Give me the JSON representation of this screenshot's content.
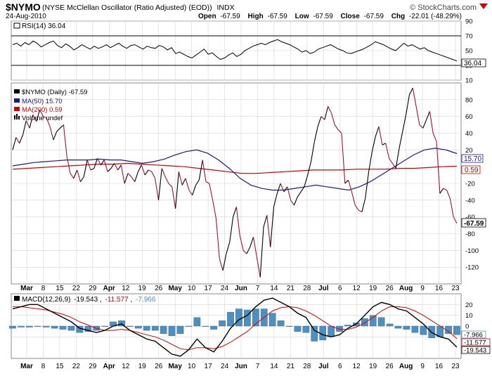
{
  "header": {
    "symbol": "$NYMO",
    "name": "(NYSE McClellan Oscillator (Ratio Adjusted) (EOD))",
    "exchange": "INDX",
    "date": "24-Aug-2010",
    "open_label": "Open",
    "open": "-67.59",
    "high_label": "High",
    "high": "-67.59",
    "low_label": "Low",
    "low": "-67.59",
    "close_label": "Close",
    "close": "-67.59",
    "chg_label": "Chg",
    "chg": "-22.01 (-48.29%)",
    "watermark": "© StockCharts.com"
  },
  "colors": {
    "price_up": "#000000",
    "price_down": "#aa1133",
    "ma50": "#1a1a8c",
    "ma200": "#cc0000",
    "macd": "#000000",
    "signal": "#dd0000",
    "histogram": "#4f8fc0",
    "grid": "#d4d4d4",
    "down_arrow": "#cc0000"
  },
  "x_labels": [
    "Mar",
    "8",
    "15",
    "22",
    "29",
    "Apr",
    "12",
    "19",
    "26",
    "May",
    "10",
    "17",
    "24",
    "Jun",
    "7",
    "14",
    "21",
    "28",
    "Jul",
    "6",
    "12",
    "19",
    "26",
    "Aug",
    "9",
    "16",
    "23"
  ],
  "x_labels_bold": [
    "Mar",
    "Apr",
    "May",
    "Jun",
    "Jul",
    "Aug"
  ],
  "chart_data": [
    {
      "type": "line",
      "panel": "rsi",
      "legend": "RSI(14) 36.04",
      "ylim": [
        10,
        90
      ],
      "y_ticks": [
        "10",
        "30",
        "50",
        "70",
        "90"
      ],
      "reference_lines": [
        30,
        70
      ],
      "last_value_label": "36.04",
      "values": [
        58,
        60,
        56,
        61,
        58,
        63,
        60,
        55,
        58,
        61,
        63,
        57,
        54,
        59,
        56,
        51,
        54,
        58,
        55,
        52,
        56,
        53,
        55,
        58,
        54,
        57,
        60,
        56,
        53,
        57,
        58,
        55,
        52,
        56,
        54,
        53,
        57,
        55,
        51,
        54,
        46,
        48,
        45,
        42,
        40,
        44,
        48,
        52,
        45,
        47,
        42,
        38,
        40,
        44,
        47,
        42,
        45,
        50,
        53,
        56,
        58,
        60,
        58,
        61,
        63,
        65,
        62,
        60,
        58,
        55,
        52,
        48,
        50,
        46,
        48,
        52,
        54,
        56,
        58,
        55,
        52,
        50,
        47,
        46,
        48,
        50,
        52,
        55,
        58,
        62,
        60,
        58,
        55,
        52,
        50,
        55,
        60,
        56,
        58,
        55,
        52,
        54,
        50,
        48,
        46,
        44,
        42,
        40,
        38,
        36
      ]
    },
    {
      "type": "line",
      "panel": "price",
      "ylim": [
        -140,
        100
      ],
      "y_ticks": [
        "-120",
        "-100",
        "-80",
        "-60",
        "-40",
        "-20",
        "20",
        "40",
        "60",
        "80"
      ],
      "series": [
        {
          "name": "$NYMO (Daily) -67.59",
          "values": [
            20,
            35,
            28,
            38,
            55,
            46,
            62,
            54,
            68,
            60,
            58,
            48,
            32,
            42,
            46,
            50,
            12,
            -8,
            -14,
            -4,
            -18,
            -12,
            8,
            -4,
            -2,
            10,
            2,
            8,
            -6,
            -2,
            4,
            -4,
            2,
            -20,
            -8,
            -12,
            -18,
            -6,
            2,
            -10,
            -4,
            -6,
            -14,
            -40,
            -2,
            -12,
            -20,
            -24,
            -50,
            -6,
            -22,
            -14,
            -28,
            -34,
            -22,
            -16,
            8,
            -18,
            -20,
            -40,
            -62,
            -110,
            -124,
            -104,
            -90,
            -60,
            -48,
            -82,
            -100,
            -104,
            -96,
            -84,
            -108,
            -132,
            -72,
            -58,
            -96,
            -48,
            -32,
            -20,
            -30,
            -24,
            -40,
            -46,
            -36,
            -30,
            -24,
            -10,
            6,
            30,
            48,
            60,
            56,
            72,
            64,
            50,
            44,
            40,
            -20,
            -16,
            -30,
            -46,
            -52,
            -54,
            -38,
            -6,
            18,
            36,
            48,
            26,
            28,
            10,
            4,
            -2,
            22,
            42,
            62,
            86,
            94,
            72,
            50,
            46,
            56,
            66,
            40,
            30,
            -32,
            -26,
            -28,
            -38,
            -60,
            -67.59
          ]
        },
        {
          "name": "MA(50) 15.70",
          "values": [
            1,
            3,
            5,
            6,
            7,
            8,
            8,
            8,
            9,
            8,
            8,
            6,
            4,
            6,
            9,
            14,
            18,
            20,
            16,
            8,
            -2,
            -14,
            -22,
            -26,
            -28,
            -28,
            -26,
            -24,
            -22,
            -24,
            -26,
            -28,
            -24,
            -18,
            -10,
            -2,
            6,
            14,
            20,
            22,
            20,
            15.7
          ]
        },
        {
          "name": "MA(200) 0.59",
          "values": [
            -3,
            -2,
            -1,
            0,
            1,
            2,
            3,
            3,
            4,
            3,
            2,
            1,
            0,
            -2,
            -4,
            -6,
            -8,
            -8,
            -7,
            -6,
            -5,
            -4,
            -4,
            -4,
            -3,
            -3,
            -3,
            -2,
            -2,
            -1,
            0,
            0.59
          ]
        },
        {
          "name": "Volume undef",
          "values": []
        }
      ],
      "ma50_last_label": "15.70",
      "ma200_last_label": "0.59",
      "close_last_label": "-67.59"
    },
    {
      "type": "line",
      "panel": "macd",
      "legend": "MACD(12,26,9) -19.543, -11.577, -7.966",
      "legend_name": "MACD(12,26,9)",
      "legend_values": [
        "-19.543",
        "-11.577",
        "-7.966"
      ],
      "ylim": [
        -30,
        30
      ],
      "y_ticks": [
        "-10",
        "0",
        "10",
        "20"
      ],
      "series": [
        {
          "name": "MACD",
          "values": [
            16,
            18,
            20,
            20,
            16,
            12,
            8,
            4,
            -2,
            -4,
            -6,
            -4,
            0,
            2,
            -4,
            -8,
            -12,
            -14,
            -20,
            -26,
            -28,
            -22,
            -12,
            -20,
            -24,
            -14,
            -2,
            6,
            10,
            18,
            24,
            26,
            22,
            18,
            12,
            8,
            -4,
            -8,
            -10,
            -8,
            -2,
            2,
            10,
            18,
            22,
            20,
            16,
            14,
            8,
            2,
            -6,
            -10,
            -12,
            -19.543
          ]
        },
        {
          "name": "Signal",
          "values": [
            18,
            18,
            17,
            16,
            15,
            13,
            11,
            8,
            4,
            1,
            -2,
            -4,
            -4,
            -3,
            -4,
            -6,
            -8,
            -10,
            -13,
            -17,
            -21,
            -22,
            -20,
            -20,
            -21,
            -19,
            -15,
            -10,
            -5,
            2,
            8,
            14,
            17,
            18,
            17,
            14,
            10,
            5,
            0,
            -3,
            -3,
            -1,
            3,
            8,
            14,
            18,
            18,
            17,
            14,
            10,
            5,
            0,
            -5,
            -11.577
          ]
        },
        {
          "name": "Histogram",
          "values": [
            -2,
            -1,
            -1,
            0,
            -1,
            -2,
            -3,
            -4,
            -6,
            -5,
            -4,
            0,
            4,
            5,
            0,
            -2,
            -4,
            -4,
            -7,
            -9,
            -7,
            0,
            8,
            0,
            -3,
            5,
            13,
            16,
            15,
            16,
            16,
            12,
            5,
            0,
            -5,
            -6,
            -14,
            -13,
            -10,
            -5,
            1,
            3,
            7,
            10,
            8,
            2,
            -2,
            -3,
            -6,
            -8,
            -11,
            -10,
            -7,
            -7.966
          ]
        }
      ],
      "last_labels": [
        "-7.966",
        "-11.577",
        "-19.543"
      ]
    }
  ]
}
